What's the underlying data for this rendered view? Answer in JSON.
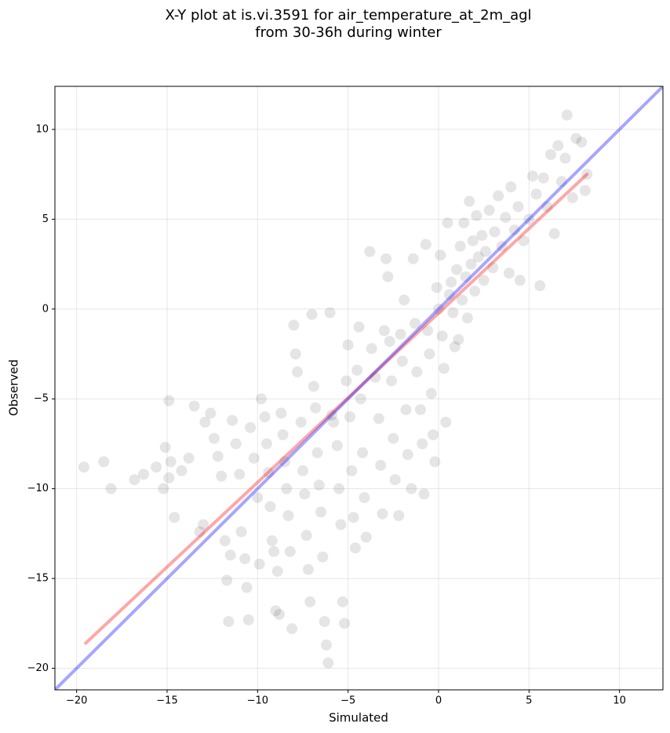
{
  "chart_data": {
    "type": "scatter",
    "title_lines": [
      "X-Y plot at is.vi.3591 for air_temperature_at_2m_agl",
      "from 30-36h during winter"
    ],
    "xlabel": "Simulated",
    "ylabel": "Observed",
    "xlim": [
      -21.2,
      12.4
    ],
    "ylim": [
      -21.2,
      12.4
    ],
    "xticks": [
      {
        "value": -20,
        "label": "−20"
      },
      {
        "value": -15,
        "label": "−15"
      },
      {
        "value": -10,
        "label": "−10"
      },
      {
        "value": -5,
        "label": "−5"
      },
      0,
      5,
      10
    ],
    "yticks": [
      {
        "value": -20,
        "label": "−20"
      },
      {
        "value": -15,
        "label": "−15"
      },
      {
        "value": -10,
        "label": "−10"
      },
      {
        "value": -5,
        "label": "−5"
      },
      0,
      5,
      10
    ],
    "grid": true,
    "series": [
      {
        "type": "scatter",
        "color": "#000000",
        "opacity": 0.1,
        "x": [
          -19.6,
          -18.5,
          -18.1,
          -16.8,
          -16.3,
          -15.6,
          -15.2,
          -15.1,
          -14.9,
          -14.9,
          -14.8,
          -14.6,
          -14.2,
          -13.8,
          -13.5,
          -13.2,
          -13,
          -12.9,
          -12.6,
          -12.4,
          -12.2,
          -12,
          -11.8,
          -11.7,
          -11.6,
          -11.5,
          -11.4,
          -11.2,
          -11,
          -10.9,
          -10.7,
          -10.6,
          -10.5,
          -10.4,
          -10.2,
          -10,
          -9.9,
          -9.8,
          -9.6,
          -9.5,
          -9.4,
          -9.3,
          -9.2,
          -9.1,
          -9,
          -8.9,
          -8.8,
          -8.7,
          -8.6,
          -8.5,
          -8.4,
          -8.3,
          -8.2,
          -8.1,
          -8,
          -7.9,
          -7.8,
          -7.6,
          -7.5,
          -7.4,
          -7.3,
          -7.2,
          -7.1,
          -7,
          -6.9,
          -6.8,
          -6.7,
          -6.6,
          -6.5,
          -6.4,
          -6.3,
          -6.2,
          -6.1,
          -6,
          -5.9,
          -5.8,
          -5.6,
          -5.5,
          -5.4,
          -5.3,
          -5.2,
          -5.1,
          -5,
          -4.9,
          -4.8,
          -4.7,
          -4.6,
          -4.5,
          -4.4,
          -4.3,
          -4.2,
          -4.1,
          -4,
          -3.8,
          -3.7,
          -3.5,
          -3.3,
          -3.2,
          -3.1,
          -3,
          -2.9,
          -2.8,
          -2.7,
          -2.6,
          -2.5,
          -2.4,
          -2.2,
          -2.1,
          -2,
          -1.9,
          -1.8,
          -1.7,
          -1.5,
          -1.4,
          -1.3,
          -1.2,
          -1,
          -0.9,
          -0.8,
          -0.7,
          -0.6,
          -0.5,
          -0.4,
          -0.3,
          -0.2,
          -0.1,
          0,
          0.1,
          0.2,
          0.3,
          0.4,
          0.5,
          0.6,
          0.7,
          0.8,
          0.9,
          1,
          1.1,
          1.2,
          1.3,
          1.4,
          1.5,
          1.6,
          1.7,
          1.8,
          1.9,
          2,
          2.1,
          2.2,
          2.4,
          2.5,
          2.6,
          2.8,
          3,
          3.1,
          3.3,
          3.5,
          3.7,
          3.9,
          4,
          4.2,
          4.4,
          4.5,
          4.7,
          5,
          5.2,
          5.4,
          5.6,
          5.8,
          6,
          6.2,
          6.4,
          6.6,
          6.8,
          7,
          7.1,
          7.4,
          7.6,
          7.9,
          8.1,
          8.2
        ],
        "values": [
          -8.8,
          -8.5,
          -10,
          -9.5,
          -9.2,
          -8.8,
          -10,
          -7.7,
          -5.1,
          -9.4,
          -8.5,
          -11.6,
          -9,
          -8.3,
          -5.4,
          -12.4,
          -12,
          -6.3,
          -5.8,
          -7.2,
          -8.2,
          -9.3,
          -12.9,
          -15.1,
          -17.4,
          -13.7,
          -6.2,
          -7.5,
          -9.2,
          -12.4,
          -13.9,
          -15.5,
          -17.3,
          -6.6,
          -8.3,
          -10.5,
          -14.2,
          -5,
          -6,
          -7.5,
          -9.1,
          -11,
          -12.9,
          -13.5,
          -16.8,
          -14.6,
          -17,
          -5.8,
          -7,
          -8.5,
          -10,
          -11.5,
          -13.5,
          -17.8,
          -0.9,
          -2.5,
          -3.5,
          -6.3,
          -9,
          -10.3,
          -12.6,
          -14.5,
          -16.3,
          -0.3,
          -4.3,
          -5.5,
          -8,
          -9.8,
          -11.3,
          -13.8,
          -17.4,
          -18.7,
          -19.7,
          -0.2,
          -5.9,
          -6.3,
          -7.6,
          -10,
          -12,
          -16.3,
          -17.5,
          -4,
          -2,
          -6,
          -9,
          -11.6,
          -13.3,
          -3.4,
          -1,
          -5,
          -8,
          -10.5,
          -12.7,
          3.2,
          -2.2,
          -3.8,
          -6.1,
          -8.7,
          -11.4,
          -1.2,
          2.8,
          1.8,
          -1.8,
          -4,
          -7.2,
          -9.5,
          -11.5,
          -1.4,
          -2.9,
          0.5,
          -5.6,
          -8.1,
          -10,
          2.8,
          -0.8,
          -3.5,
          -5.6,
          -7.5,
          -10.3,
          3.6,
          -1.2,
          -2.5,
          -4.7,
          -7,
          -8.5,
          1.2,
          0,
          3,
          -1.5,
          -3.3,
          -6.3,
          4.8,
          0.8,
          1.5,
          -0.2,
          -2.1,
          2.2,
          -1.7,
          3.5,
          0.5,
          4.8,
          1.8,
          -0.5,
          6,
          2.5,
          3.8,
          1,
          5.2,
          2.9,
          4.1,
          1.6,
          3.2,
          5.5,
          2.3,
          4.3,
          6.3,
          3.5,
          5.1,
          2,
          6.8,
          4.4,
          5.7,
          1.6,
          3.8,
          5,
          7.4,
          6.4,
          1.3,
          7.3,
          5.7,
          8.6,
          4.2,
          9.1,
          7.1,
          8.4,
          10.8,
          6.2,
          9.5,
          9.3,
          6.6,
          7.5
        ]
      },
      {
        "type": "line",
        "color": "#ff0000",
        "opacity": 0.35,
        "x": [
          -19.5,
          8.2
        ],
        "values": [
          -18.6,
          7.5
        ]
      },
      {
        "type": "line",
        "color": "#0000ff",
        "opacity": 0.35,
        "x": [
          -21.2,
          12.4
        ],
        "values": [
          -21.2,
          12.4
        ]
      }
    ]
  }
}
